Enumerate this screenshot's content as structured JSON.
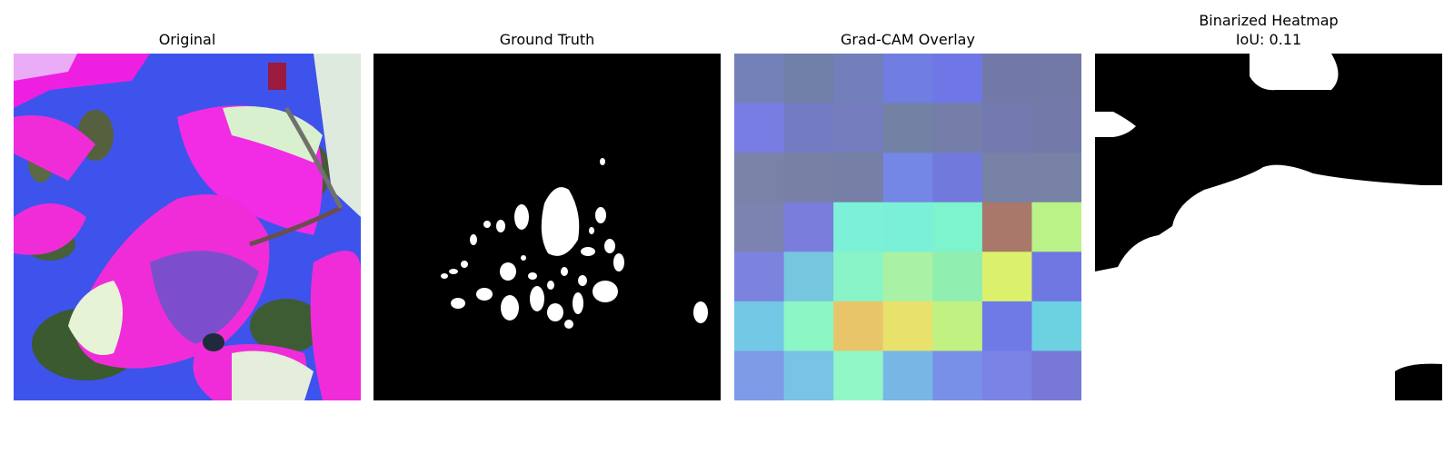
{
  "panels": [
    {
      "title": "Original"
    },
    {
      "title": "Ground Truth"
    },
    {
      "title": "Grad-CAM Overlay"
    },
    {
      "title_line1": "Binarized Heatmap",
      "title_line2": "IoU: 0.11"
    }
  ],
  "gradcam_grid": [
    [
      "#7481b9",
      "#7180a8",
      "#727fba",
      "#707ee1",
      "#6f77e6",
      "#7279a8",
      "#7379a6"
    ],
    [
      "#787de3",
      "#737bc2",
      "#757dbf",
      "#7381a5",
      "#747ea8",
      "#737ab0",
      "#737aa9"
    ],
    [
      "#7a82a7",
      "#7880a6",
      "#767fa5",
      "#7486e6",
      "#7279dd",
      "#7782a6",
      "#7782a6"
    ],
    [
      "#7c83b1",
      "#7a7ddb",
      "#7df1d7",
      "#7af0d8",
      "#7df4cd",
      "#a9786a",
      "#baf288"
    ],
    [
      "#7c83df",
      "#77c6df",
      "#88f4c7",
      "#a9f1a5",
      "#90eeb0",
      "#dbf16c",
      "#6f78e2"
    ],
    [
      "#73c8e6",
      "#8cf6c5",
      "#e9c56a",
      "#e8e26d",
      "#c0f181",
      "#6f7ae6",
      "#6cd1e0"
    ],
    [
      "#7d9be6",
      "#79c3e6",
      "#91f7c7",
      "#78b6e6",
      "#7890e6",
      "#7a83e6",
      "#7879d7"
    ]
  ]
}
